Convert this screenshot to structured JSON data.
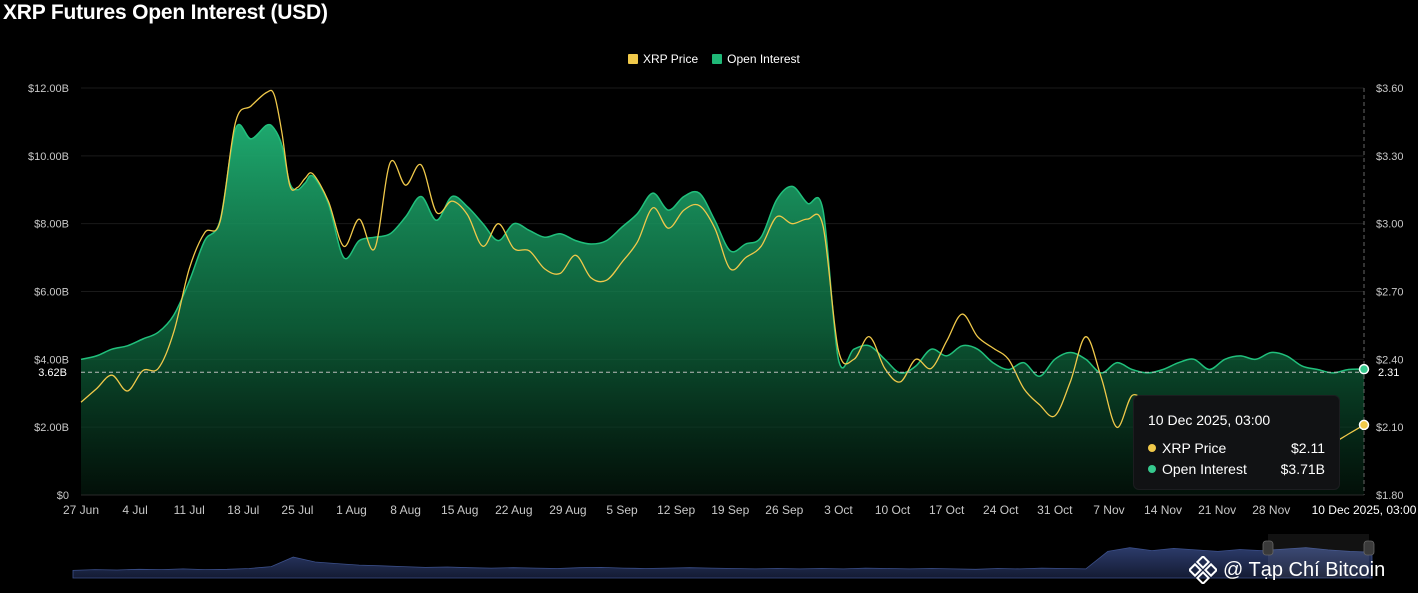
{
  "chart_data": {
    "type": "area",
    "title": "XRP Futures Open Interest (USD)",
    "legend": [
      {
        "name": "XRP Price",
        "color": "#f0c94a"
      },
      {
        "name": "Open Interest",
        "color": "#1fb877"
      }
    ],
    "legend_placement": "top-center",
    "x_tick_labels": [
      "27 Jun",
      "4 Jul",
      "11 Jul",
      "18 Jul",
      "25 Jul",
      "1 Aug",
      "8 Aug",
      "15 Aug",
      "22 Aug",
      "29 Aug",
      "5 Sep",
      "12 Sep",
      "19 Sep",
      "26 Sep",
      "3 Oct",
      "10 Oct",
      "17 Oct",
      "24 Oct",
      "31 Oct",
      "7 Nov",
      "14 Nov",
      "21 Nov",
      "28 Nov"
    ],
    "x_range": [
      "27 Jun",
      "10 Dec"
    ],
    "y_left": {
      "ticks": [
        "$0",
        "$2.00B",
        "$4.00B",
        "$6.00B",
        "$8.00B",
        "$10.00B",
        "$12.00B"
      ],
      "range": [
        0,
        12
      ],
      "unit": "B USD"
    },
    "y_right": {
      "ticks": [
        "$1.80",
        "$2.10",
        "$2.40",
        "$2.70",
        "$3.00",
        "$3.30",
        "$3.60"
      ],
      "range": [
        1.8,
        3.6
      ]
    },
    "crosshair": {
      "x_label": "10 Dec 2025, 03:00",
      "left_label": "3.62B",
      "right_label": "2.31",
      "left_value": 3.62
    },
    "tooltip": {
      "time": "10 Dec 2025, 03:00",
      "rows": [
        {
          "label": "XRP Price",
          "value": "$2.11",
          "color": "#f0c94a"
        },
        {
          "label": "Open Interest",
          "value": "$3.71B",
          "color": "#36c98e"
        }
      ]
    },
    "series": [
      {
        "name": "Open Interest",
        "color": "#1fb877",
        "x_day": [
          0,
          2,
          4,
          6,
          8,
          10,
          12,
          14,
          16,
          18,
          20,
          22,
          24,
          25,
          26,
          27,
          28,
          29,
          30,
          32,
          34,
          36,
          38,
          40,
          42,
          44,
          46,
          48,
          50,
          52,
          54,
          56,
          58,
          60,
          62,
          64,
          66,
          68,
          70,
          72,
          74,
          76,
          78,
          80,
          82,
          84,
          86,
          88,
          90,
          92,
          94,
          96,
          98,
          100,
          102,
          104,
          106,
          108,
          110,
          112,
          114,
          116,
          118,
          120,
          122,
          124,
          126,
          128,
          130,
          132,
          134,
          136,
          138,
          140,
          142,
          144,
          146,
          148,
          150,
          152,
          154,
          156,
          158,
          160,
          162,
          164,
          166
        ],
        "values": [
          4.0,
          4.1,
          4.3,
          4.4,
          4.6,
          4.8,
          5.3,
          6.3,
          7.5,
          8.1,
          10.8,
          10.5,
          10.9,
          10.8,
          10.3,
          9.2,
          9.0,
          9.2,
          9.4,
          8.6,
          7.0,
          7.5,
          7.6,
          7.7,
          8.2,
          8.8,
          8.1,
          8.8,
          8.5,
          8.0,
          7.5,
          8.0,
          7.8,
          7.6,
          7.7,
          7.5,
          7.4,
          7.5,
          7.9,
          8.3,
          8.9,
          8.4,
          8.8,
          8.9,
          8.1,
          7.2,
          7.4,
          7.6,
          8.7,
          9.1,
          8.6,
          8.4,
          4.0,
          4.3,
          4.4,
          4.0,
          3.6,
          3.8,
          4.3,
          4.1,
          4.4,
          4.3,
          3.9,
          3.7,
          3.9,
          3.5,
          4.0,
          4.2,
          4.0,
          3.6,
          3.9,
          3.7,
          3.6,
          3.7,
          3.9,
          4.0,
          3.7,
          4.0,
          4.1,
          4.0,
          4.2,
          4.1,
          3.8,
          3.7,
          3.6,
          3.7,
          3.71
        ]
      },
      {
        "name": "XRP Price",
        "color": "#f0c94a",
        "x_day": [
          0,
          2,
          4,
          6,
          8,
          10,
          12,
          14,
          16,
          18,
          20,
          22,
          24,
          25,
          26,
          27,
          28,
          29,
          30,
          32,
          34,
          36,
          38,
          40,
          42,
          44,
          46,
          48,
          50,
          52,
          54,
          56,
          58,
          60,
          62,
          64,
          66,
          68,
          70,
          72,
          74,
          76,
          78,
          80,
          82,
          84,
          86,
          88,
          90,
          92,
          94,
          96,
          98,
          100,
          102,
          104,
          106,
          108,
          110,
          112,
          114,
          116,
          118,
          120,
          122,
          124,
          126,
          128,
          130,
          132,
          134,
          136,
          138,
          140,
          142,
          144,
          146,
          148,
          150,
          152,
          154,
          156,
          158,
          160,
          162,
          164,
          166
        ],
        "values": [
          2.21,
          2.27,
          2.33,
          2.26,
          2.35,
          2.36,
          2.52,
          2.8,
          2.96,
          3.01,
          3.45,
          3.52,
          3.58,
          3.57,
          3.4,
          3.17,
          3.16,
          3.2,
          3.22,
          3.1,
          2.9,
          3.02,
          2.89,
          3.27,
          3.17,
          3.26,
          3.05,
          3.1,
          3.04,
          2.9,
          3.0,
          2.89,
          2.88,
          2.8,
          2.78,
          2.86,
          2.76,
          2.75,
          2.83,
          2.92,
          3.07,
          2.98,
          3.06,
          3.08,
          2.98,
          2.8,
          2.85,
          2.9,
          3.03,
          3.0,
          3.02,
          2.99,
          2.44,
          2.4,
          2.5,
          2.36,
          2.3,
          2.4,
          2.36,
          2.48,
          2.6,
          2.5,
          2.45,
          2.4,
          2.27,
          2.2,
          2.15,
          2.3,
          2.5,
          2.32,
          2.1,
          2.24,
          2.2,
          2.15,
          2.2,
          2.1,
          2.05,
          2.0,
          2.03,
          2.02,
          2.06,
          2.04,
          2.02,
          2.0,
          2.03,
          2.07,
          2.11
        ]
      }
    ],
    "navigator_levels": [
      0.2,
      0.22,
      0.21,
      0.23,
      0.22,
      0.24,
      0.22,
      0.23,
      0.25,
      0.3,
      0.55,
      0.42,
      0.38,
      0.34,
      0.32,
      0.3,
      0.28,
      0.29,
      0.27,
      0.26,
      0.27,
      0.26,
      0.25,
      0.27,
      0.28,
      0.26,
      0.25,
      0.26,
      0.27,
      0.26,
      0.25,
      0.24,
      0.25,
      0.24,
      0.25,
      0.24,
      0.26,
      0.25,
      0.24,
      0.25,
      0.24,
      0.23,
      0.25,
      0.24,
      0.26,
      0.25,
      0.24,
      0.7,
      0.8,
      0.72,
      0.78,
      0.74,
      0.7,
      0.75,
      0.72,
      0.76,
      0.8,
      0.74,
      0.7,
      0.68
    ]
  },
  "watermark": {
    "text": "@ Tạp Chí Bitcoin",
    "icon": "binance-diamond-icon"
  }
}
